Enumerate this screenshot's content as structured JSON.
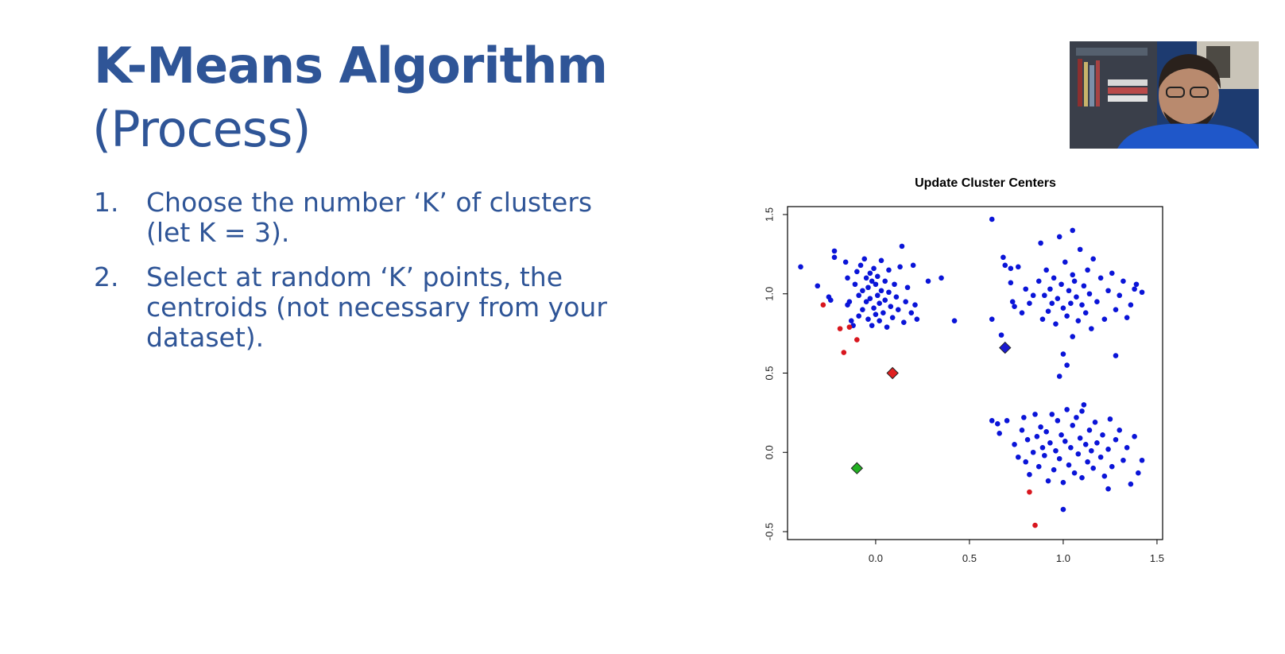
{
  "slide": {
    "title": "K-Means Algorithm",
    "subtitle": "(Process)",
    "steps": [
      {
        "number": "1.",
        "lines": [
          "Choose the number ‘K’ of clusters",
          "(let K = 3)."
        ]
      },
      {
        "number": "2.",
        "lines": [
          "Select at random ‘K’ points, the",
          "centroids (not necessary from your",
          "dataset)."
        ]
      }
    ]
  },
  "colors": {
    "title": "#2f5597",
    "points_blue": "#0a14d8",
    "points_red": "#d8161e",
    "centroid_red": "#e02020",
    "centroid_green": "#22b022",
    "centroid_blue": "#1a1ad0"
  },
  "chart_data": {
    "type": "scatter",
    "title": "Update Cluster Centers",
    "xlabel": "",
    "ylabel": "",
    "xlim": [
      -0.47,
      1.53
    ],
    "ylim": [
      -0.55,
      1.55
    ],
    "xticks": [
      "0.0",
      "0.5",
      "1.0",
      "1.5"
    ],
    "xtick_values": [
      0.0,
      0.5,
      1.0,
      1.5
    ],
    "yticks": [
      "-0.5",
      "0.0",
      "0.5",
      "1.0",
      "1.5"
    ],
    "ytick_values": [
      -0.5,
      0.0,
      0.5,
      1.0,
      1.5
    ],
    "grid": false,
    "series": [
      {
        "color": "#0a14d8",
        "marker": "circle",
        "points": [
          [
            -0.4,
            1.17
          ],
          [
            -0.31,
            1.05
          ],
          [
            -0.25,
            0.98
          ],
          [
            -0.24,
            0.96
          ],
          [
            -0.22,
            1.27
          ],
          [
            -0.22,
            1.23
          ],
          [
            -0.16,
            1.2
          ],
          [
            -0.15,
            1.1
          ],
          [
            -0.15,
            0.93
          ],
          [
            -0.14,
            0.95
          ],
          [
            -0.13,
            0.83
          ],
          [
            -0.12,
            0.8
          ],
          [
            -0.11,
            1.06
          ],
          [
            -0.1,
            1.14
          ],
          [
            -0.09,
            0.99
          ],
          [
            -0.09,
            0.86
          ],
          [
            -0.08,
            1.18
          ],
          [
            -0.07,
            1.02
          ],
          [
            -0.07,
            0.9
          ],
          [
            -0.06,
            1.22
          ],
          [
            -0.05,
            1.1
          ],
          [
            -0.05,
            0.95
          ],
          [
            -0.04,
            0.84
          ],
          [
            -0.04,
            1.04
          ],
          [
            -0.03,
            1.13
          ],
          [
            -0.03,
            0.97
          ],
          [
            -0.02,
            1.08
          ],
          [
            -0.02,
            0.8
          ],
          [
            -0.01,
            1.16
          ],
          [
            -0.01,
            0.91
          ],
          [
            0.0,
            1.06
          ],
          [
            0.0,
            0.87
          ],
          [
            0.01,
            0.99
          ],
          [
            0.01,
            1.11
          ],
          [
            0.02,
            0.83
          ],
          [
            0.02,
            0.94
          ],
          [
            0.03,
            1.02
          ],
          [
            0.03,
            1.21
          ],
          [
            0.04,
            0.88
          ],
          [
            0.05,
            1.08
          ],
          [
            0.05,
            0.96
          ],
          [
            0.06,
            0.79
          ],
          [
            0.07,
            1.15
          ],
          [
            0.07,
            1.01
          ],
          [
            0.08,
            0.92
          ],
          [
            0.09,
            0.85
          ],
          [
            0.1,
            1.06
          ],
          [
            0.11,
            0.98
          ],
          [
            0.12,
            0.9
          ],
          [
            0.13,
            1.17
          ],
          [
            0.14,
            1.3
          ],
          [
            0.15,
            0.82
          ],
          [
            0.16,
            0.95
          ],
          [
            0.17,
            1.04
          ],
          [
            0.19,
            0.88
          ],
          [
            0.2,
            1.18
          ],
          [
            0.21,
            0.93
          ],
          [
            0.22,
            0.84
          ],
          [
            0.28,
            1.08
          ],
          [
            0.35,
            1.1
          ],
          [
            0.42,
            0.83
          ],
          [
            0.62,
            1.47
          ],
          [
            0.62,
            0.84
          ],
          [
            0.67,
            0.74
          ],
          [
            0.68,
            1.23
          ],
          [
            0.69,
            1.18
          ],
          [
            0.72,
            1.16
          ],
          [
            0.72,
            1.07
          ],
          [
            0.73,
            0.95
          ],
          [
            0.74,
            0.92
          ],
          [
            0.76,
            1.17
          ],
          [
            0.78,
            0.88
          ],
          [
            0.8,
            1.03
          ],
          [
            0.82,
            0.94
          ],
          [
            0.84,
            0.99
          ],
          [
            0.87,
            1.08
          ],
          [
            0.88,
            1.32
          ],
          [
            0.89,
            0.84
          ],
          [
            0.9,
            0.99
          ],
          [
            0.91,
            1.15
          ],
          [
            0.92,
            0.89
          ],
          [
            0.93,
            1.03
          ],
          [
            0.94,
            0.94
          ],
          [
            0.95,
            1.1
          ],
          [
            0.96,
            0.81
          ],
          [
            0.97,
            0.97
          ],
          [
            0.98,
            1.36
          ],
          [
            0.99,
            1.06
          ],
          [
            1.0,
            0.91
          ],
          [
            1.0,
            0.62
          ],
          [
            1.01,
            1.2
          ],
          [
            1.02,
            0.86
          ],
          [
            1.03,
            1.02
          ],
          [
            1.04,
            0.94
          ],
          [
            1.05,
            1.12
          ],
          [
            1.05,
            0.73
          ],
          [
            1.06,
            1.08
          ],
          [
            1.07,
            0.98
          ],
          [
            1.08,
            0.83
          ],
          [
            1.09,
            1.28
          ],
          [
            1.1,
            0.93
          ],
          [
            1.11,
            1.05
          ],
          [
            1.12,
            0.88
          ],
          [
            1.13,
            1.15
          ],
          [
            1.14,
            1.0
          ],
          [
            1.15,
            0.78
          ],
          [
            1.16,
            1.22
          ],
          [
            1.18,
            0.95
          ],
          [
            1.2,
            1.1
          ],
          [
            1.22,
            0.84
          ],
          [
            1.24,
            1.02
          ],
          [
            1.26,
            1.13
          ],
          [
            1.28,
            0.9
          ],
          [
            1.3,
            0.99
          ],
          [
            1.32,
            1.08
          ],
          [
            1.34,
            0.85
          ],
          [
            1.36,
            0.93
          ],
          [
            1.38,
            1.03
          ],
          [
            1.39,
            1.06
          ],
          [
            1.42,
            1.01
          ],
          [
            0.98,
            0.48
          ],
          [
            1.02,
            0.55
          ],
          [
            1.28,
            0.61
          ],
          [
            1.05,
            1.4
          ],
          [
            0.62,
            0.2
          ],
          [
            0.65,
            0.18
          ],
          [
            0.66,
            0.12
          ],
          [
            0.7,
            0.2
          ],
          [
            0.74,
            0.05
          ],
          [
            0.76,
            -0.03
          ],
          [
            0.78,
            0.14
          ],
          [
            0.79,
            0.22
          ],
          [
            0.8,
            -0.06
          ],
          [
            0.81,
            0.08
          ],
          [
            0.82,
            -0.14
          ],
          [
            0.84,
            0.0
          ],
          [
            0.85,
            0.24
          ],
          [
            0.86,
            0.1
          ],
          [
            0.87,
            -0.09
          ],
          [
            0.88,
            0.16
          ],
          [
            0.89,
            0.03
          ],
          [
            0.9,
            -0.02
          ],
          [
            0.91,
            0.13
          ],
          [
            0.92,
            -0.18
          ],
          [
            0.93,
            0.06
          ],
          [
            0.94,
            0.24
          ],
          [
            0.95,
            -0.11
          ],
          [
            0.96,
            0.01
          ],
          [
            0.97,
            0.2
          ],
          [
            0.98,
            -0.04
          ],
          [
            0.99,
            0.11
          ],
          [
            1.0,
            -0.19
          ],
          [
            1.01,
            0.07
          ],
          [
            1.02,
            0.27
          ],
          [
            1.03,
            -0.08
          ],
          [
            1.04,
            0.03
          ],
          [
            1.05,
            0.17
          ],
          [
            1.06,
            -0.13
          ],
          [
            1.07,
            0.22
          ],
          [
            1.08,
            -0.01
          ],
          [
            1.09,
            0.09
          ],
          [
            1.1,
            -0.16
          ],
          [
            1.11,
            0.3
          ],
          [
            1.12,
            0.05
          ],
          [
            1.13,
            -0.06
          ],
          [
            1.14,
            0.14
          ],
          [
            1.15,
            0.01
          ],
          [
            1.16,
            -0.1
          ],
          [
            1.17,
            0.19
          ],
          [
            1.18,
            0.06
          ],
          [
            1.2,
            -0.03
          ],
          [
            1.21,
            0.11
          ],
          [
            1.22,
            -0.15
          ],
          [
            1.24,
            0.02
          ],
          [
            1.25,
            0.21
          ],
          [
            1.26,
            -0.09
          ],
          [
            1.28,
            0.08
          ],
          [
            1.3,
            0.14
          ],
          [
            1.32,
            -0.05
          ],
          [
            1.34,
            0.03
          ],
          [
            1.36,
            -0.2
          ],
          [
            1.38,
            0.1
          ],
          [
            1.4,
            -0.13
          ],
          [
            1.42,
            -0.05
          ],
          [
            1.24,
            -0.23
          ],
          [
            1.0,
            -0.36
          ],
          [
            1.1,
            0.26
          ]
        ]
      },
      {
        "color": "#d8161e",
        "marker": "circle",
        "points": [
          [
            -0.28,
            0.93
          ],
          [
            -0.19,
            0.78
          ],
          [
            -0.14,
            0.79
          ],
          [
            -0.17,
            0.63
          ],
          [
            -0.1,
            0.71
          ],
          [
            0.82,
            -0.25
          ],
          [
            0.85,
            -0.46
          ]
        ]
      },
      {
        "color": "#e02020",
        "marker": "diamond",
        "points": [
          [
            0.09,
            0.5
          ]
        ]
      },
      {
        "color": "#22b022",
        "marker": "diamond",
        "points": [
          [
            -0.1,
            -0.1
          ]
        ]
      },
      {
        "color": "#1a1ad0",
        "marker": "diamond",
        "points": [
          [
            0.69,
            0.66
          ]
        ]
      }
    ]
  }
}
